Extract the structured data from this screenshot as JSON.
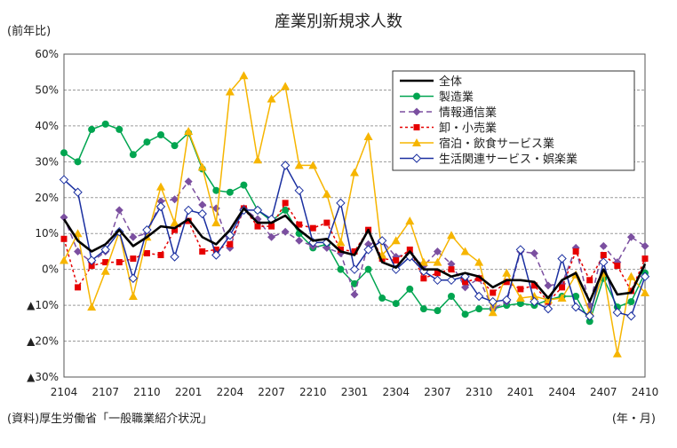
{
  "unit_left": "(前年比)",
  "unit_right": "(年・月)",
  "source": "(資料)厚生労働省「一般職業紹介状況」",
  "chart_data": {
    "type": "line",
    "title": "産業別新規求人数",
    "ylim": [
      -30,
      60
    ],
    "y_tick_values": [
      60,
      50,
      40,
      30,
      20,
      10,
      0,
      -10,
      -20,
      -30
    ],
    "y_tick_labels": [
      "60%",
      "50%",
      "40%",
      "30%",
      "20%",
      "10%",
      "0%",
      "▲10%",
      "▲20%",
      "▲30%"
    ],
    "x_tick_labels": [
      "2104",
      "2107",
      "2110",
      "2201",
      "2204",
      "2207",
      "2210",
      "2301",
      "2304",
      "2307",
      "2310",
      "2401",
      "2404",
      "2407",
      "2410"
    ],
    "grid": true,
    "legend_position": "top-right",
    "x": [
      "2104",
      "2105",
      "2106",
      "2107",
      "2108",
      "2109",
      "2110",
      "2111",
      "2112",
      "2201",
      "2202",
      "2203",
      "2204",
      "2205",
      "2206",
      "2207",
      "2208",
      "2209",
      "2210",
      "2211",
      "2212",
      "2301",
      "2302",
      "2303",
      "2304",
      "2305",
      "2306",
      "2307",
      "2308",
      "2309",
      "2310",
      "2311",
      "2312",
      "2401",
      "2402",
      "2403",
      "2404",
      "2405",
      "2406",
      "2407",
      "2408",
      "2409",
      "2410"
    ],
    "series": [
      {
        "name": "全体",
        "color": "#000000",
        "marker": "none",
        "dash": "solid",
        "values": [
          14,
          8,
          5,
          7,
          11,
          6.5,
          9,
          12,
          11.5,
          14,
          9,
          7,
          11,
          17,
          13,
          13,
          15,
          11,
          8,
          8.5,
          5,
          4,
          11,
          2,
          0.5,
          5,
          0,
          0,
          -2,
          -1,
          -2,
          -5,
          -3,
          -3,
          -3.5,
          -8,
          -3,
          -1,
          -9,
          0,
          -7,
          -6.5,
          1.5
        ]
      },
      {
        "name": "製造業",
        "color": "#00a550",
        "marker": "circle",
        "dash": "solid",
        "values": [
          32.5,
          30,
          39,
          40.5,
          39,
          32,
          35.5,
          37.5,
          34.5,
          38,
          28,
          22,
          21.5,
          23.5,
          16.5,
          13.5,
          16.5,
          10,
          6,
          7,
          0,
          -4,
          0,
          -8,
          -9.5,
          -5.5,
          -11,
          -11.5,
          -7.5,
          -12.5,
          -11,
          -11,
          -10,
          -9.5,
          -10,
          -8.5,
          -7.5,
          -7.5,
          -14.5,
          -2.5,
          -10.5,
          -9,
          -1
        ]
      },
      {
        "name": "情報通信業",
        "color": "#7b4fa0",
        "marker": "diamond",
        "dash": "dash",
        "values": [
          14.5,
          5,
          2,
          5,
          16.5,
          9,
          10,
          19,
          19.5,
          24.5,
          18,
          17,
          6,
          17,
          14,
          9,
          10.5,
          8,
          6.5,
          6,
          4.5,
          -7,
          7,
          8,
          3.5,
          4.5,
          1,
          5,
          1.5,
          -5,
          -2.5,
          -11,
          -9,
          5,
          4.5,
          -4.5,
          -4,
          6,
          -10,
          6.5,
          2,
          9,
          6.5
        ]
      },
      {
        "name": "卸・小売業",
        "color": "#e60000",
        "marker": "square",
        "dash": "dot",
        "values": [
          8.5,
          -5,
          1,
          2,
          2,
          3,
          4.5,
          4,
          11,
          13.5,
          5,
          5.5,
          7,
          17,
          12,
          12,
          18.5,
          12.5,
          11.5,
          13,
          5.5,
          5,
          11,
          3,
          2.5,
          5.5,
          -2.5,
          -1,
          0,
          -3.5,
          -2.5,
          -6.5,
          -3.5,
          -5.5,
          -4.5,
          -9,
          -5,
          5,
          -3,
          4,
          1,
          -6,
          3
        ]
      },
      {
        "name": "宿泊・飲食サービス業",
        "color": "#f6b500",
        "marker": "triangle",
        "dash": "solid",
        "values": [
          2.5,
          10,
          -10.5,
          -0.5,
          10.5,
          -7.5,
          9,
          23,
          13,
          38.5,
          28.5,
          13,
          49.5,
          54,
          30.5,
          47.5,
          51,
          29,
          29,
          21,
          7.5,
          27,
          37,
          4,
          8,
          13.5,
          2,
          2,
          9.5,
          5,
          2,
          -12,
          -1,
          -8,
          -7.5,
          -8.5,
          -8,
          -1.5,
          -12,
          -1,
          -23.5,
          -2,
          -6.5
        ]
      },
      {
        "name": "生活関連サービス・娯楽業",
        "color": "#1a2fa0",
        "marker": "open-diamond",
        "dash": "solid",
        "values": [
          25,
          21.5,
          2.5,
          5.5,
          10.5,
          -2.5,
          11,
          17.5,
          3.5,
          16.5,
          15.5,
          4,
          9.5,
          16.5,
          16.5,
          14,
          29,
          22,
          7.5,
          7.5,
          18.5,
          0,
          5.5,
          8,
          0,
          3.5,
          -0.5,
          -3,
          -3,
          -2,
          -7.5,
          -9,
          -8.5,
          5.5,
          -9,
          -11,
          3,
          -10.5,
          -13,
          2,
          -12,
          -13,
          -2
        ]
      }
    ]
  }
}
